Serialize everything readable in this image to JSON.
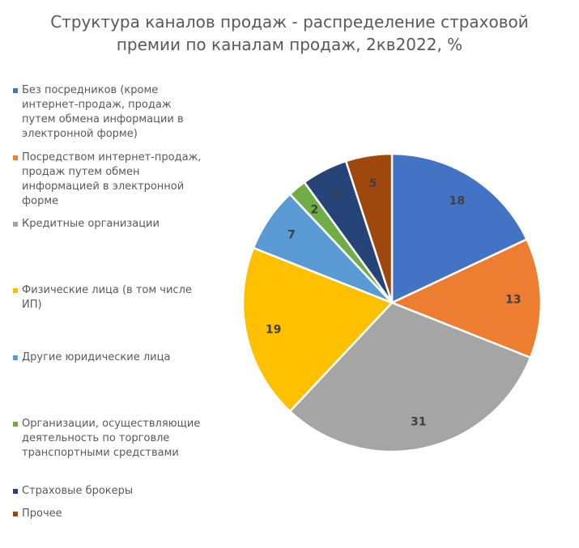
{
  "chart_data": {
    "type": "pie",
    "title": "Структура каналов продаж - распределение страховой премии по каналам продаж, 2кв2022, %",
    "title_lines": [
      "Структура каналов продаж - распределение страховой",
      "премии по каналам продаж, 2кв2022, %"
    ],
    "categories": [
      "Без посредников (кроме интернет-продаж, продаж путем обмена информации в электронной форме)",
      "Посредством интернет-продаж, продаж путем обмен информацией в электронной форме",
      "Кредитные организации",
      "Физические лица (в том числе ИП)",
      "Другие юридические лица",
      "Организации, осуществляющие деятельность по торговле транспортными средствами",
      "Страховые брокеры",
      "Прочее"
    ],
    "values": [
      18,
      13,
      31,
      19,
      7,
      2,
      5,
      5
    ],
    "data_labels": [
      "18",
      "13",
      "31",
      "19",
      "7",
      "2",
      "5",
      "5"
    ],
    "colors": [
      "#4472C4",
      "#ED7D31",
      "#A5A5A5",
      "#FFC000",
      "#5B9BD5",
      "#70AD47",
      "#264478",
      "#9E480E"
    ],
    "legend_position": "left"
  }
}
